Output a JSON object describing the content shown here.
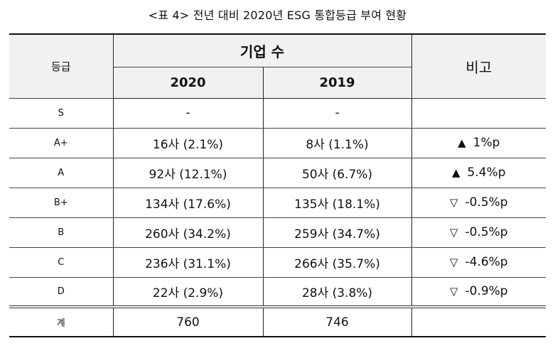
{
  "caption": "<표 4> 전년 대비 2020년 ESG 통합등급 부여 현황",
  "header": {
    "grade": "등급",
    "count_group": "기업 수",
    "year_2020": "2020",
    "year_2019": "2019",
    "note": "비고"
  },
  "rows": [
    {
      "grade": "S",
      "y2020": "-",
      "y2019": "-",
      "mark": "",
      "note": ""
    },
    {
      "grade": "A+",
      "y2020": "16사 (2.1%)",
      "y2019": "8사 (1.1%)",
      "mark": "▲",
      "note": "1%p"
    },
    {
      "grade": "A",
      "y2020": "92사 (12.1%)",
      "y2019": "50사 (6.7%)",
      "mark": "▲",
      "note": "5.4%p"
    },
    {
      "grade": "B+",
      "y2020": "134사 (17.6%)",
      "y2019": "135사 (18.1%)",
      "mark": "▽",
      "note": "-0.5%p"
    },
    {
      "grade": "B",
      "y2020": "260사 (34.2%)",
      "y2019": "259사 (34.7%)",
      "mark": "▽",
      "note": "-0.5%p"
    },
    {
      "grade": "C",
      "y2020": "236사 (31.1%)",
      "y2019": "266사 (35.7%)",
      "mark": "▽",
      "note": "-4.6%p"
    },
    {
      "grade": "D",
      "y2020": "22사 (2.9%)",
      "y2019": "28사 (3.8%)",
      "mark": "▽",
      "note": "-0.9%p"
    }
  ],
  "total": {
    "grade": "계",
    "y2020": "760",
    "y2019": "746",
    "note": ""
  }
}
